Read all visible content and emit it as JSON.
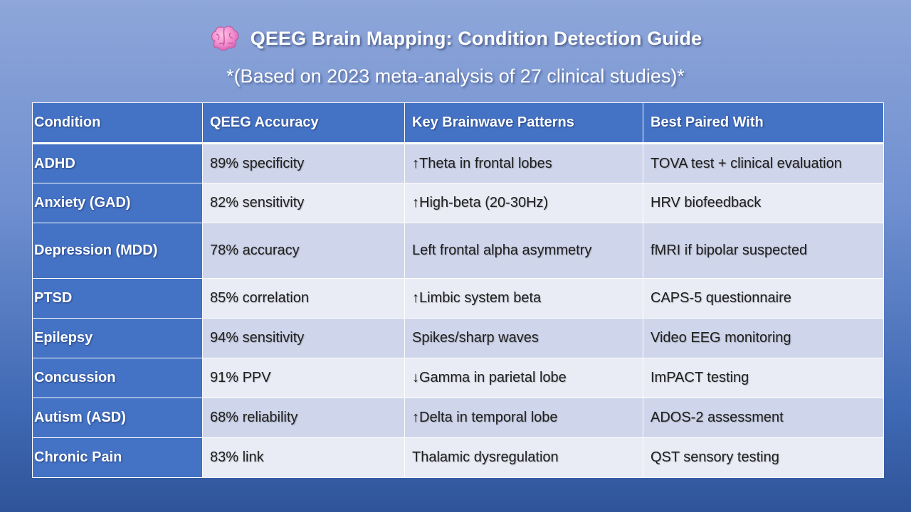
{
  "header": {
    "icon": "brain-icon",
    "title": "QEEG Brain Mapping: Condition Detection Guide",
    "subtitle": "*(Based on 2023 meta-analysis of 27 clinical studies)*"
  },
  "table": {
    "columns": [
      "Condition",
      "QEEG Accuracy",
      "Key Brainwave Patterns",
      "Best Paired With"
    ],
    "rows": [
      [
        "ADHD",
        "89% specificity",
        "↑Theta in frontal lobes",
        "TOVA test + clinical evaluation"
      ],
      [
        "Anxiety (GAD)",
        "82% sensitivity",
        "↑High-beta (20-30Hz)",
        "HRV biofeedback"
      ],
      [
        "Depression (MDD)",
        "78% accuracy",
        "Left frontal alpha asymmetry",
        "fMRI if bipolar suspected"
      ],
      [
        "PTSD",
        "85% correlation",
        "↑Limbic system beta",
        "CAPS-5 questionnaire"
      ],
      [
        "Epilepsy",
        "94% sensitivity",
        "Spikes/sharp waves",
        "Video EEG monitoring"
      ],
      [
        "Concussion",
        "91% PPV",
        "↓Gamma in parietal lobe",
        "ImPACT testing"
      ],
      [
        "Autism (ASD)",
        "68% reliability",
        "↑Delta in temporal lobe",
        "ADOS-2 assessment"
      ],
      [
        "Chronic Pain",
        "83% link",
        "Thalamic dysregulation",
        "QST sensory testing"
      ]
    ]
  },
  "colors": {
    "header_blue": "#4472c4",
    "row_odd": "#cfd5ea",
    "row_even": "#e9ebf5"
  }
}
